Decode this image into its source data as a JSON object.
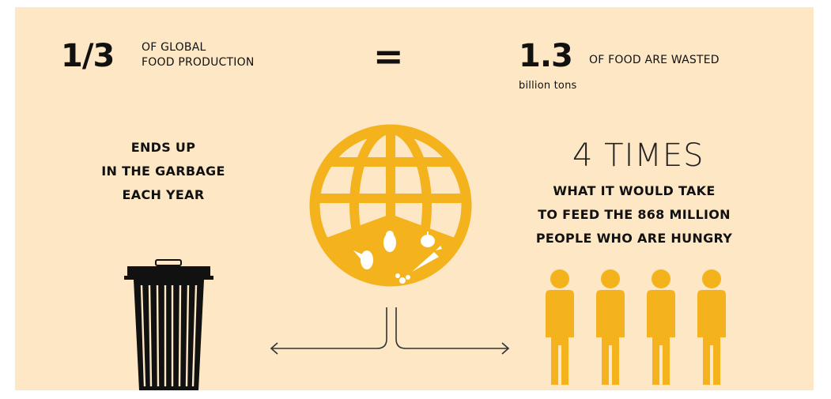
{
  "left_stat": {
    "value": "1/3",
    "line1": "OF GLOBAL",
    "line2": "FOOD PRODUCTION"
  },
  "equals": "=",
  "right_stat": {
    "value": "1.3",
    "unit": "billion tons",
    "text": "OF FOOD ARE WASTED"
  },
  "garbage_text": {
    "line1": "ENDS UP",
    "line2": "IN THE GARBAGE",
    "line3": "EACH YEAR"
  },
  "times": "4 TIMES",
  "hungry_text": {
    "line1": "WHAT IT WOULD TAKE",
    "line2": "TO FEED THE 868 MILLION",
    "line3": "PEOPLE WHO ARE HUNGRY"
  },
  "colors": {
    "background": "#fde7c4",
    "accent": "#f4b21c",
    "ink": "#111111"
  },
  "icons": [
    "trash-can-icon",
    "globe-icon",
    "food-items-icon",
    "person-icon"
  ]
}
